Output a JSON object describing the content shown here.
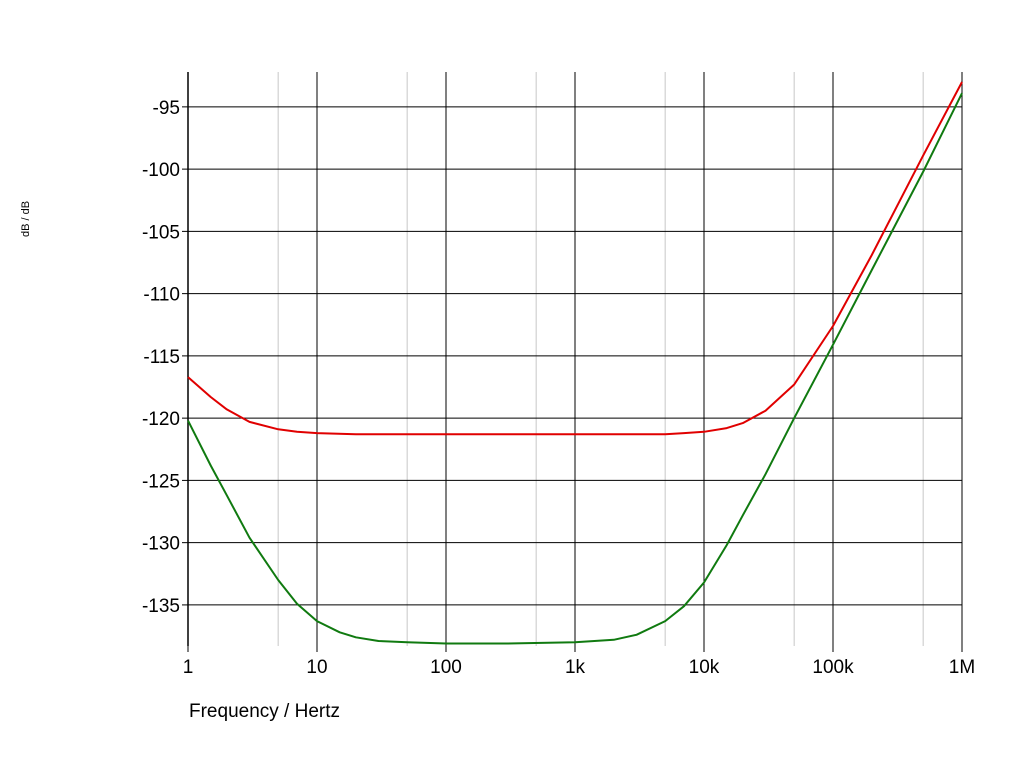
{
  "chart_data": {
    "type": "line",
    "xlabel": "Frequency / Hertz",
    "ylabel": "dB / dB",
    "xscale": "log",
    "xlim": [
      1,
      1000000
    ],
    "ylim": [
      -138.3,
      -92.2
    ],
    "grid": true,
    "x_ticks": [
      {
        "value": 1,
        "label": "1"
      },
      {
        "value": 10,
        "label": "10"
      },
      {
        "value": 100,
        "label": "100"
      },
      {
        "value": 1000,
        "label": "1k"
      },
      {
        "value": 10000,
        "label": "10k"
      },
      {
        "value": 100000,
        "label": "100k"
      },
      {
        "value": 1000000,
        "label": "1M"
      }
    ],
    "y_ticks": [
      {
        "value": -95,
        "label": "-95"
      },
      {
        "value": -100,
        "label": "-100"
      },
      {
        "value": -105,
        "label": "-105"
      },
      {
        "value": -110,
        "label": "-110"
      },
      {
        "value": -115,
        "label": "-115"
      },
      {
        "value": -120,
        "label": "-120"
      },
      {
        "value": -125,
        "label": "-125"
      },
      {
        "value": -130,
        "label": "-130"
      },
      {
        "value": -135,
        "label": "-135"
      }
    ],
    "series": [
      {
        "color": "#e00000",
        "x": [
          1,
          1.5,
          2,
          3,
          5,
          7,
          10,
          20,
          50,
          100,
          300,
          1000,
          3000,
          5000,
          7000,
          10000,
          15000,
          20000,
          30000,
          50000,
          100000,
          200000,
          500000,
          1000000
        ],
        "y": [
          -116.7,
          -118.3,
          -119.3,
          -120.3,
          -120.9,
          -121.1,
          -121.2,
          -121.3,
          -121.3,
          -121.3,
          -121.3,
          -121.3,
          -121.3,
          -121.3,
          -121.2,
          -121.1,
          -120.8,
          -120.4,
          -119.4,
          -117.3,
          -112.6,
          -106.9,
          -98.9,
          -93.0
        ]
      },
      {
        "color": "#107a10",
        "x": [
          1,
          1.5,
          2,
          3,
          5,
          7,
          10,
          15,
          20,
          30,
          50,
          100,
          300,
          1000,
          2000,
          3000,
          5000,
          7000,
          10000,
          15000,
          20000,
          30000,
          50000,
          100000,
          200000,
          500000,
          1000000
        ],
        "y": [
          -120.2,
          -123.8,
          -126.2,
          -129.6,
          -133.0,
          -134.9,
          -136.3,
          -137.2,
          -137.6,
          -137.9,
          -138.0,
          -138.1,
          -138.1,
          -138.0,
          -137.8,
          -137.4,
          -136.3,
          -135.1,
          -133.2,
          -130.2,
          -127.8,
          -124.5,
          -120.0,
          -114.1,
          -108.1,
          -100.2,
          -93.9
        ]
      }
    ]
  }
}
